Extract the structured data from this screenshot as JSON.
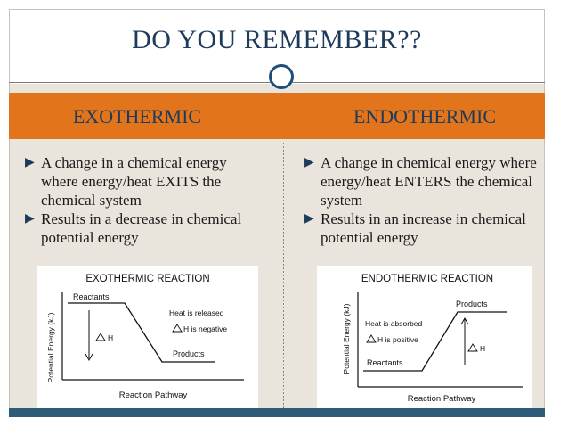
{
  "slide": {
    "title": "DO YOU REMEMBER??"
  },
  "columns": {
    "left": {
      "heading": "EXOTHERMIC",
      "bullets": [
        "A change in a chemical energy where energy/heat EXITS the chemical system",
        "Results in a decrease in chemical potential energy"
      ]
    },
    "right": {
      "heading": "ENDOTHERMIC",
      "bullets": [
        "A change in chemical energy where energy/heat ENTERS the chemical system",
        "Results in an increase in chemical potential energy"
      ]
    }
  },
  "exo_graph": {
    "title": "EXOTHERMIC REACTION",
    "ylabel": "Potential Energy (kJ)",
    "xlabel": "Reaction Pathway",
    "reactants": "Reactants",
    "products": "Products",
    "heat_note": "Heat is released",
    "delta_h": "H",
    "delta_note": "H is negative"
  },
  "endo_graph": {
    "title": "ENDOTHERMIC REACTION",
    "ylabel": "Potential Energy (kJ)",
    "xlabel": "Reaction Pathway",
    "reactants": "Reactants",
    "products": "Products",
    "heat_note": "Heat is absorbed",
    "delta_h": "H",
    "delta_note": "H is positive"
  },
  "colors": {
    "accent": "#e2741c",
    "title": "#1f3b5b",
    "footer": "#2e5b78",
    "background": "#e9e4dc"
  }
}
